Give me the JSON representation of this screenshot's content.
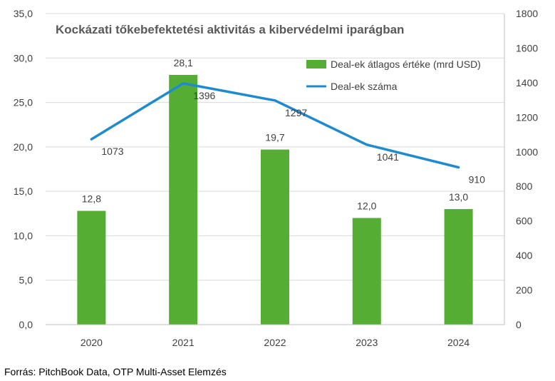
{
  "chart_data": {
    "type": "bar",
    "title": "Kockázati tőkebefektetési aktivitás a kibervédelmi iparágban",
    "categories": [
      "2020",
      "2021",
      "2022",
      "2023",
      "2024"
    ],
    "series": [
      {
        "name": "Deal-ek átlagos értéke (mrd USD)",
        "type": "bar",
        "axis": "left",
        "color": "#55AE33",
        "values": [
          12.8,
          28.1,
          19.7,
          12.0,
          13.0
        ],
        "labels": [
          "12,8",
          "28,1",
          "19,7",
          "12,0",
          "13,0"
        ]
      },
      {
        "name": "Deal-ek száma",
        "type": "line",
        "axis": "right",
        "color": "#1F8AD0",
        "values": [
          1073,
          1396,
          1297,
          1041,
          910
        ],
        "labels": [
          "1073",
          "1396",
          "1297",
          "1041",
          "910"
        ]
      }
    ],
    "y_left": {
      "ylim": [
        0,
        35
      ],
      "ticks": [
        0,
        5,
        10,
        15,
        20,
        25,
        30,
        35
      ],
      "tick_labels": [
        "0,0",
        "5,0",
        "10,0",
        "15,0",
        "20,0",
        "25,0",
        "30,0",
        "35,0"
      ]
    },
    "y_right": {
      "ylim": [
        0,
        1800
      ],
      "ticks": [
        0,
        200,
        400,
        600,
        800,
        1000,
        1200,
        1400,
        1600,
        1800
      ],
      "tick_labels": [
        "0",
        "200",
        "400",
        "600",
        "800",
        "1000",
        "1200",
        "1400",
        "1600",
        "1800"
      ]
    },
    "grid": true,
    "legend_position": "top-right"
  },
  "source_text": "Forrás: PitchBook Data, OTP Multi-Asset Elemzés"
}
